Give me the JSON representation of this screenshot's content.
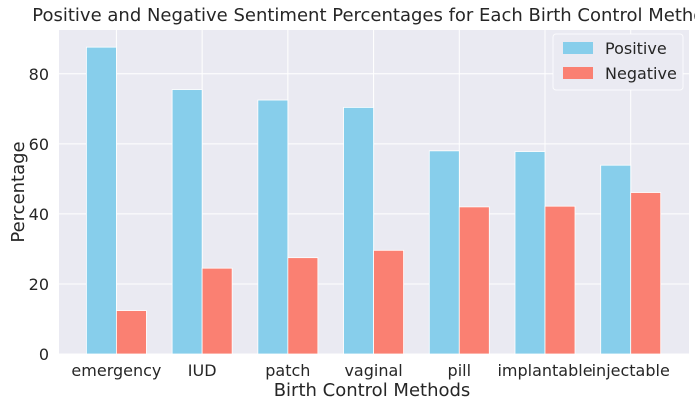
{
  "chart_data": {
    "type": "bar",
    "title": "Positive and Negative Sentiment Percentages for Each Birth Control Method",
    "xlabel": "Birth Control Methods",
    "ylabel": "Percentage",
    "categories": [
      "emergency",
      "IUD",
      "patch",
      "vaginal",
      "pill",
      "implantable",
      "injectable"
    ],
    "series": [
      {
        "name": "Positive",
        "color": "#87CEEB",
        "values": [
          87.6,
          75.5,
          72.5,
          70.4,
          58.0,
          57.8,
          53.9
        ]
      },
      {
        "name": "Negative",
        "color": "#FA8072",
        "values": [
          12.4,
          24.5,
          27.5,
          29.6,
          42.0,
          42.2,
          46.1
        ]
      }
    ],
    "ylim": [
      0,
      92.5
    ],
    "yticks": [
      0,
      20,
      40,
      60,
      80
    ],
    "grid": true,
    "legend_position": "top-right",
    "background_color": "#EAEAF2"
  }
}
